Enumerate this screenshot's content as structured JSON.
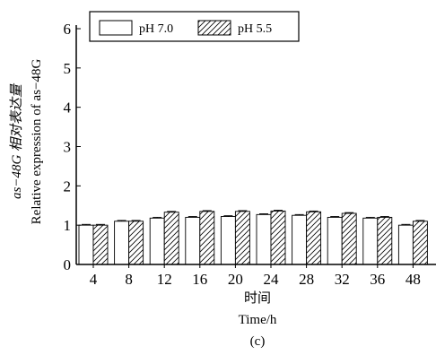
{
  "chart_data": {
    "type": "bar",
    "categories": [
      "4",
      "8",
      "12",
      "16",
      "20",
      "24",
      "28",
      "32",
      "36",
      "48"
    ],
    "series": [
      {
        "name": "pH 7.0",
        "pattern": "none",
        "values": [
          1.0,
          1.1,
          1.18,
          1.2,
          1.22,
          1.27,
          1.25,
          1.2,
          1.18,
          1.0
        ],
        "errors": [
          0.02,
          0.02,
          0.02,
          0.02,
          0.02,
          0.02,
          0.02,
          0.02,
          0.02,
          0.02
        ]
      },
      {
        "name": "pH 5.5",
        "pattern": "diagonal-hatch",
        "values": [
          1.0,
          1.1,
          1.33,
          1.35,
          1.35,
          1.36,
          1.34,
          1.3,
          1.2,
          1.1
        ],
        "errors": [
          0.02,
          0.02,
          0.02,
          0.02,
          0.02,
          0.02,
          0.02,
          0.02,
          0.02,
          0.02
        ]
      }
    ],
    "ylim": [
      0,
      6
    ],
    "yticks": [
      "0",
      "1",
      "2",
      "3",
      "4",
      "5",
      "6"
    ],
    "ylabel_line1": "as−48G 相对表达量",
    "ylabel_line2": "Relative expression of as−48G",
    "xlabel_line1": "时间",
    "xlabel_line2": "Time/h",
    "panel_label": "(c)",
    "legend_position": "top-left",
    "grid": false
  },
  "colors": {
    "bar_fill": "#ffffff",
    "stroke": "#000000"
  }
}
